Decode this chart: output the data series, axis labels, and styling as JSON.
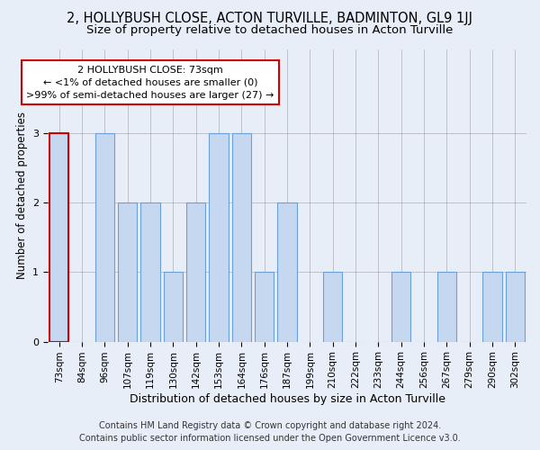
{
  "title1": "2, HOLLYBUSH CLOSE, ACTON TURVILLE, BADMINTON, GL9 1JJ",
  "title2": "Size of property relative to detached houses in Acton Turville",
  "xlabel": "Distribution of detached houses by size in Acton Turville",
  "ylabel": "Number of detached properties",
  "categories": [
    "73sqm",
    "84sqm",
    "96sqm",
    "107sqm",
    "119sqm",
    "130sqm",
    "142sqm",
    "153sqm",
    "164sqm",
    "176sqm",
    "187sqm",
    "199sqm",
    "210sqm",
    "222sqm",
    "233sqm",
    "244sqm",
    "256sqm",
    "267sqm",
    "279sqm",
    "290sqm",
    "302sqm"
  ],
  "values": [
    3,
    0,
    3,
    2,
    2,
    1,
    2,
    3,
    3,
    1,
    2,
    0,
    1,
    0,
    0,
    1,
    0,
    1,
    0,
    1,
    1
  ],
  "bar_color": "#c5d8f0",
  "bar_edge_color": "#6a9fd8",
  "highlight_index": 0,
  "highlight_edge_color": "#cc0000",
  "annotation_line1": "2 HOLLYBUSH CLOSE: 73sqm",
  "annotation_line2": "← <1% of detached houses are smaller (0)",
  "annotation_line3": ">99% of semi-detached houses are larger (27) →",
  "annotation_box_color": "#ffffff",
  "annotation_box_edge": "#cc0000",
  "ylim": [
    0,
    4.2
  ],
  "yticks": [
    0,
    1,
    2,
    3
  ],
  "footer1": "Contains HM Land Registry data © Crown copyright and database right 2024.",
  "footer2": "Contains public sector information licensed under the Open Government Licence v3.0.",
  "bg_color": "#e8eef8",
  "plot_bg_color": "#e8eef8",
  "title1_fontsize": 10.5,
  "title2_fontsize": 9.5,
  "xlabel_fontsize": 9,
  "ylabel_fontsize": 8.5,
  "tick_fontsize": 7.5,
  "footer_fontsize": 7
}
